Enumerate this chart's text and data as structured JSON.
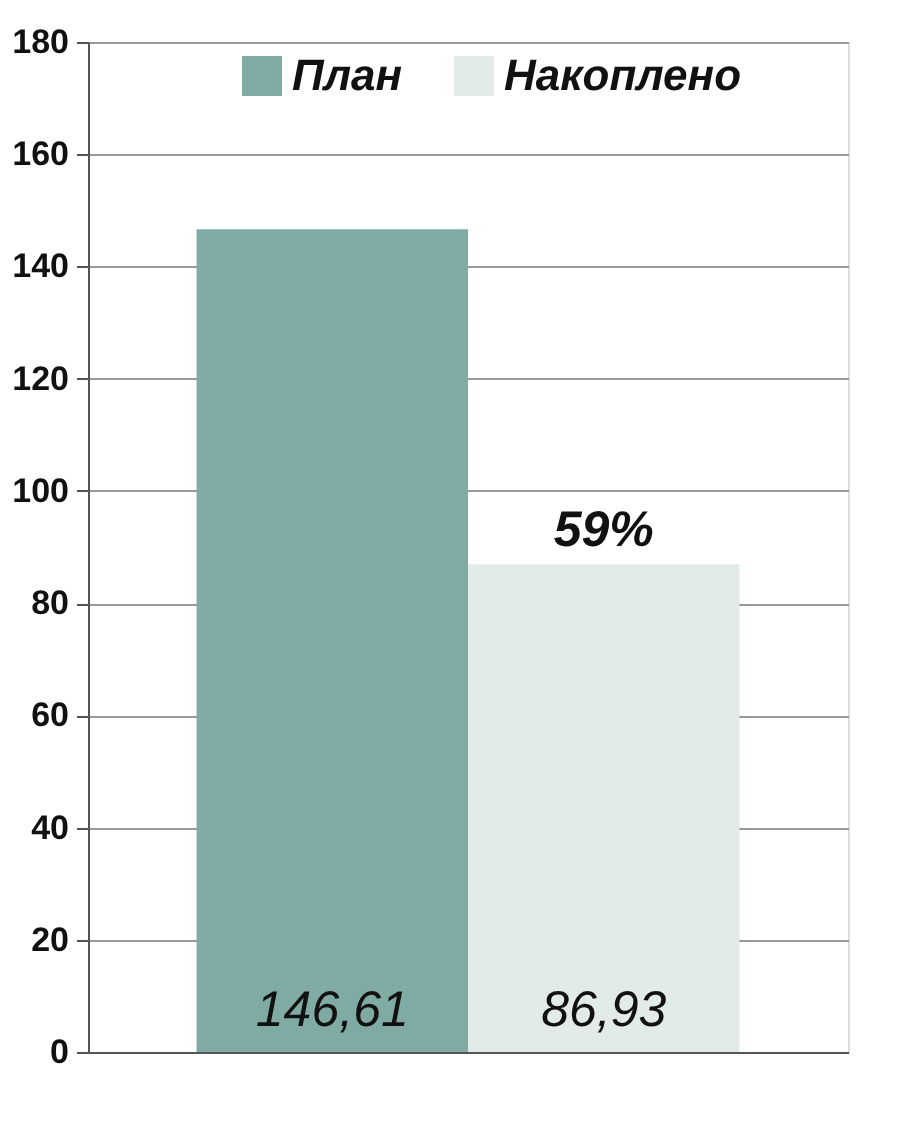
{
  "chart_data": {
    "type": "bar",
    "categories": [
      null
    ],
    "series": [
      {
        "name": "План",
        "color": "#80aba5",
        "values": [
          146.61
        ],
        "value_labels": [
          "146,61"
        ]
      },
      {
        "name": "Накоплено",
        "color": "#e2ebe7",
        "values": [
          86.93
        ],
        "value_labels": [
          "86,93"
        ]
      }
    ],
    "ylim": [
      0,
      180
    ],
    "yticks": [
      0,
      20,
      40,
      60,
      80,
      100,
      120,
      140,
      160,
      180
    ],
    "grid": "y",
    "legend": "top",
    "annotations": [
      {
        "text": "59%",
        "y": 86.93
      }
    ]
  }
}
